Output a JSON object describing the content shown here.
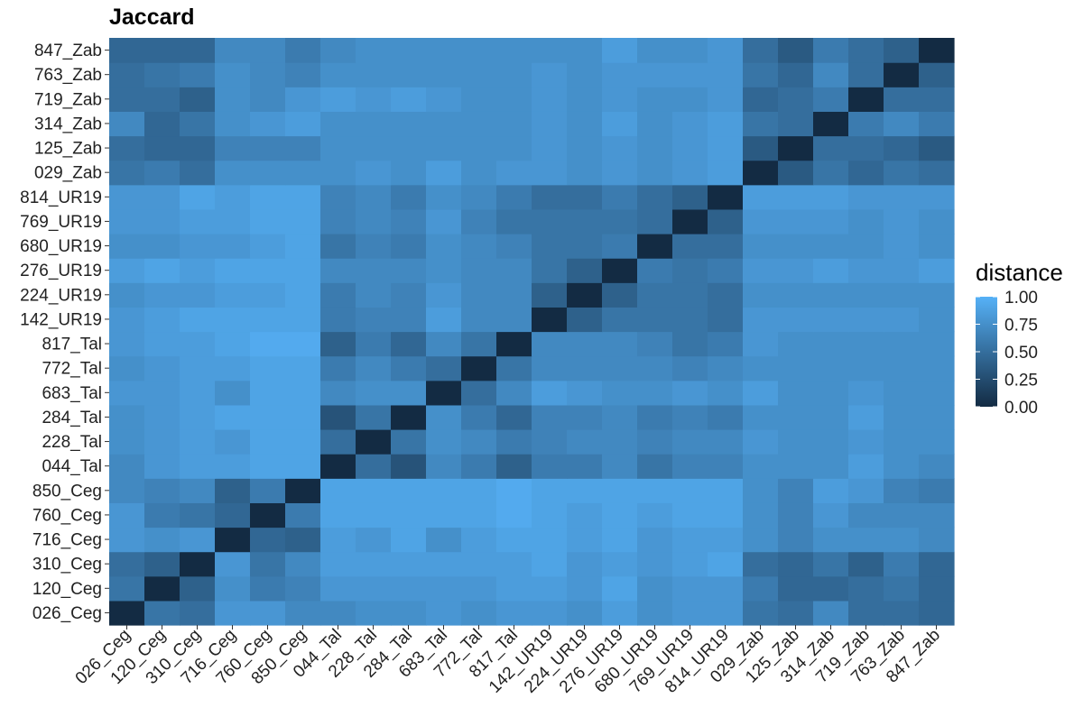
{
  "chart_data": {
    "type": "heatmap",
    "title": "Jaccard",
    "xlabel": "",
    "ylabel": "",
    "labels": [
      "026_Ceg",
      "120_Ceg",
      "310_Ceg",
      "716_Ceg",
      "760_Ceg",
      "850_Ceg",
      "044_Tal",
      "228_Tal",
      "284_Tal",
      "683_Tal",
      "772_Tal",
      "817_Tal",
      "142_UR19",
      "224_UR19",
      "276_UR19",
      "680_UR19",
      "769_UR19",
      "814_UR19",
      "029_Zab",
      "125_Zab",
      "314_Zab",
      "719_Zab",
      "763_Zab",
      "847_Zab"
    ],
    "value_range": [
      0,
      1
    ],
    "legend": {
      "title": "distance",
      "ticks": [
        "1.00",
        "0.75",
        "0.50",
        "0.25",
        "0.00"
      ],
      "low_color": "#132b43",
      "high_color": "#56b1f7"
    },
    "values": [
      [
        0.0,
        0.55,
        0.5,
        0.8,
        0.8,
        0.7,
        0.7,
        0.75,
        0.75,
        0.8,
        0.75,
        0.8,
        0.8,
        0.75,
        0.85,
        0.75,
        0.8,
        0.8,
        0.55,
        0.5,
        0.7,
        0.5,
        0.5,
        0.45
      ],
      [
        0.55,
        0.0,
        0.4,
        0.75,
        0.6,
        0.65,
        0.8,
        0.8,
        0.8,
        0.8,
        0.8,
        0.85,
        0.85,
        0.8,
        0.9,
        0.75,
        0.8,
        0.8,
        0.6,
        0.45,
        0.45,
        0.5,
        0.55,
        0.45
      ],
      [
        0.5,
        0.4,
        0.0,
        0.8,
        0.55,
        0.7,
        0.85,
        0.85,
        0.85,
        0.85,
        0.85,
        0.85,
        0.9,
        0.8,
        0.85,
        0.8,
        0.85,
        0.9,
        0.5,
        0.45,
        0.55,
        0.4,
        0.6,
        0.45
      ],
      [
        0.8,
        0.75,
        0.8,
        0.0,
        0.45,
        0.4,
        0.85,
        0.8,
        0.9,
        0.75,
        0.85,
        0.9,
        0.9,
        0.85,
        0.9,
        0.8,
        0.85,
        0.85,
        0.75,
        0.65,
        0.75,
        0.75,
        0.75,
        0.7
      ],
      [
        0.8,
        0.6,
        0.55,
        0.45,
        0.0,
        0.6,
        0.9,
        0.9,
        0.9,
        0.9,
        0.9,
        0.95,
        0.9,
        0.85,
        0.9,
        0.85,
        0.9,
        0.9,
        0.75,
        0.65,
        0.8,
        0.7,
        0.7,
        0.7
      ],
      [
        0.7,
        0.65,
        0.7,
        0.4,
        0.6,
        0.0,
        0.9,
        0.9,
        0.9,
        0.9,
        0.9,
        0.95,
        0.9,
        0.9,
        0.9,
        0.9,
        0.9,
        0.9,
        0.75,
        0.65,
        0.85,
        0.8,
        0.65,
        0.6
      ],
      [
        0.7,
        0.8,
        0.85,
        0.85,
        0.9,
        0.9,
        0.0,
        0.5,
        0.3,
        0.7,
        0.6,
        0.4,
        0.6,
        0.6,
        0.7,
        0.55,
        0.65,
        0.65,
        0.75,
        0.75,
        0.75,
        0.85,
        0.75,
        0.7
      ],
      [
        0.75,
        0.8,
        0.85,
        0.8,
        0.9,
        0.9,
        0.5,
        0.0,
        0.55,
        0.75,
        0.7,
        0.6,
        0.65,
        0.7,
        0.7,
        0.65,
        0.7,
        0.7,
        0.8,
        0.75,
        0.75,
        0.8,
        0.75,
        0.75
      ],
      [
        0.75,
        0.8,
        0.85,
        0.9,
        0.9,
        0.9,
        0.3,
        0.55,
        0.0,
        0.75,
        0.6,
        0.45,
        0.65,
        0.65,
        0.7,
        0.6,
        0.65,
        0.6,
        0.75,
        0.75,
        0.75,
        0.85,
        0.75,
        0.75
      ],
      [
        0.8,
        0.8,
        0.85,
        0.75,
        0.9,
        0.9,
        0.7,
        0.75,
        0.75,
        0.0,
        0.5,
        0.7,
        0.85,
        0.8,
        0.75,
        0.75,
        0.8,
        0.75,
        0.85,
        0.75,
        0.75,
        0.8,
        0.75,
        0.75
      ],
      [
        0.75,
        0.8,
        0.85,
        0.85,
        0.9,
        0.9,
        0.6,
        0.7,
        0.6,
        0.5,
        0.0,
        0.55,
        0.7,
        0.7,
        0.7,
        0.7,
        0.65,
        0.7,
        0.75,
        0.75,
        0.75,
        0.75,
        0.75,
        0.75
      ],
      [
        0.8,
        0.85,
        0.85,
        0.9,
        0.95,
        0.95,
        0.4,
        0.6,
        0.45,
        0.7,
        0.55,
        0.0,
        0.7,
        0.7,
        0.7,
        0.65,
        0.55,
        0.6,
        0.8,
        0.75,
        0.75,
        0.75,
        0.75,
        0.75
      ],
      [
        0.8,
        0.85,
        0.9,
        0.9,
        0.9,
        0.9,
        0.6,
        0.65,
        0.65,
        0.85,
        0.7,
        0.7,
        0.0,
        0.4,
        0.55,
        0.55,
        0.55,
        0.5,
        0.8,
        0.8,
        0.8,
        0.8,
        0.8,
        0.75
      ],
      [
        0.75,
        0.8,
        0.8,
        0.85,
        0.85,
        0.9,
        0.6,
        0.7,
        0.65,
        0.8,
        0.7,
        0.7,
        0.4,
        0.0,
        0.4,
        0.55,
        0.55,
        0.5,
        0.75,
        0.75,
        0.75,
        0.75,
        0.75,
        0.75
      ],
      [
        0.85,
        0.9,
        0.85,
        0.9,
        0.9,
        0.9,
        0.7,
        0.7,
        0.7,
        0.75,
        0.7,
        0.7,
        0.55,
        0.4,
        0.0,
        0.6,
        0.55,
        0.6,
        0.8,
        0.8,
        0.85,
        0.8,
        0.8,
        0.85
      ],
      [
        0.75,
        0.75,
        0.8,
        0.8,
        0.85,
        0.9,
        0.55,
        0.65,
        0.6,
        0.75,
        0.7,
        0.65,
        0.55,
        0.55,
        0.6,
        0.0,
        0.5,
        0.5,
        0.75,
        0.75,
        0.75,
        0.75,
        0.8,
        0.75
      ],
      [
        0.8,
        0.8,
        0.85,
        0.85,
        0.9,
        0.9,
        0.65,
        0.7,
        0.65,
        0.8,
        0.65,
        0.55,
        0.55,
        0.55,
        0.55,
        0.5,
        0.0,
        0.4,
        0.8,
        0.8,
        0.8,
        0.75,
        0.8,
        0.75
      ],
      [
        0.8,
        0.8,
        0.9,
        0.85,
        0.9,
        0.9,
        0.65,
        0.7,
        0.6,
        0.75,
        0.7,
        0.6,
        0.5,
        0.5,
        0.6,
        0.5,
        0.4,
        0.0,
        0.85,
        0.85,
        0.85,
        0.8,
        0.8,
        0.8
      ],
      [
        0.55,
        0.6,
        0.5,
        0.75,
        0.75,
        0.75,
        0.75,
        0.8,
        0.75,
        0.85,
        0.75,
        0.8,
        0.8,
        0.75,
        0.8,
        0.75,
        0.8,
        0.85,
        0.0,
        0.35,
        0.55,
        0.45,
        0.55,
        0.5
      ],
      [
        0.5,
        0.45,
        0.45,
        0.65,
        0.65,
        0.65,
        0.75,
        0.75,
        0.75,
        0.75,
        0.75,
        0.75,
        0.8,
        0.75,
        0.8,
        0.75,
        0.8,
        0.85,
        0.35,
        0.0,
        0.5,
        0.5,
        0.45,
        0.35
      ],
      [
        0.7,
        0.45,
        0.55,
        0.75,
        0.8,
        0.85,
        0.75,
        0.75,
        0.75,
        0.75,
        0.75,
        0.75,
        0.8,
        0.75,
        0.85,
        0.75,
        0.8,
        0.85,
        0.55,
        0.5,
        0.0,
        0.6,
        0.7,
        0.6
      ],
      [
        0.5,
        0.5,
        0.4,
        0.75,
        0.7,
        0.8,
        0.85,
        0.8,
        0.85,
        0.8,
        0.75,
        0.75,
        0.8,
        0.75,
        0.8,
        0.75,
        0.75,
        0.8,
        0.45,
        0.5,
        0.6,
        0.0,
        0.5,
        0.5
      ],
      [
        0.5,
        0.55,
        0.6,
        0.75,
        0.7,
        0.65,
        0.75,
        0.75,
        0.75,
        0.75,
        0.75,
        0.75,
        0.8,
        0.75,
        0.8,
        0.8,
        0.8,
        0.8,
        0.55,
        0.45,
        0.7,
        0.5,
        0.0,
        0.4
      ],
      [
        0.45,
        0.45,
        0.45,
        0.7,
        0.7,
        0.6,
        0.7,
        0.75,
        0.75,
        0.75,
        0.75,
        0.75,
        0.75,
        0.75,
        0.85,
        0.75,
        0.75,
        0.8,
        0.5,
        0.35,
        0.6,
        0.5,
        0.4,
        0.0
      ]
    ]
  }
}
